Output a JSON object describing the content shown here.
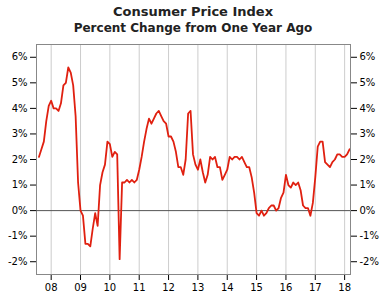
{
  "chart_data": {
    "type": "line",
    "title": "Consumer Price Index",
    "subtitle": "Percent Change from One Year Ago",
    "color": "#e02010",
    "grid": "x",
    "xlim": [
      2007.5,
      2018.2
    ],
    "xticks": [
      {
        "value": 2008,
        "label": "08"
      },
      {
        "value": 2009,
        "label": "09"
      },
      {
        "value": 2010,
        "label": "10"
      },
      {
        "value": 2011,
        "label": "11"
      },
      {
        "value": 2012,
        "label": "12"
      },
      {
        "value": 2013,
        "label": "13"
      },
      {
        "value": 2014,
        "label": "14"
      },
      {
        "value": 2015,
        "label": "15"
      },
      {
        "value": 2016,
        "label": "16"
      },
      {
        "value": 2017,
        "label": "17"
      },
      {
        "value": 2018,
        "label": "18"
      }
    ],
    "ylim": [
      -2.5,
      6.5
    ],
    "yticks": [
      {
        "value": -2,
        "label": "-2%"
      },
      {
        "value": -1,
        "label": "-1%"
      },
      {
        "value": 0,
        "label": "0%"
      },
      {
        "value": 1,
        "label": "1%"
      },
      {
        "value": 2,
        "label": "2%"
      },
      {
        "value": 3,
        "label": "3%"
      },
      {
        "value": 4,
        "label": "4%"
      },
      {
        "value": 5,
        "label": "5%"
      },
      {
        "value": 6,
        "label": "6%"
      }
    ],
    "x": [
      2007.583,
      2007.667,
      2007.75,
      2007.833,
      2007.917,
      2008.0,
      2008.083,
      2008.167,
      2008.25,
      2008.333,
      2008.417,
      2008.5,
      2008.583,
      2008.667,
      2008.75,
      2008.833,
      2008.917,
      2009.0,
      2009.083,
      2009.167,
      2009.25,
      2009.333,
      2009.417,
      2009.5,
      2009.583,
      2009.667,
      2009.75,
      2009.833,
      2009.917,
      2010.0,
      2010.083,
      2010.167,
      2010.25,
      2010.333,
      2010.417,
      2010.5,
      2010.583,
      2010.667,
      2010.75,
      2010.833,
      2010.917,
      2011.0,
      2011.083,
      2011.167,
      2011.25,
      2011.333,
      2011.417,
      2011.5,
      2011.583,
      2011.667,
      2011.75,
      2011.833,
      2011.917,
      2012.0,
      2012.083,
      2012.167,
      2012.25,
      2012.333,
      2012.417,
      2012.5,
      2012.583,
      2012.667,
      2012.75,
      2012.833,
      2012.917,
      2013.0,
      2013.083,
      2013.167,
      2013.25,
      2013.333,
      2013.417,
      2013.5,
      2013.583,
      2013.667,
      2013.75,
      2013.833,
      2013.917,
      2014.0,
      2014.083,
      2014.167,
      2014.25,
      2014.333,
      2014.417,
      2014.5,
      2014.583,
      2014.667,
      2014.75,
      2014.833,
      2014.917,
      2015.0,
      2015.083,
      2015.167,
      2015.25,
      2015.333,
      2015.417,
      2015.5,
      2015.583,
      2015.667,
      2015.75,
      2015.833,
      2015.917,
      2016.0,
      2016.083,
      2016.167,
      2016.25,
      2016.333,
      2016.417,
      2016.5,
      2016.583,
      2016.667,
      2016.75,
      2016.833,
      2016.917,
      2017.0,
      2017.083,
      2017.167,
      2017.25,
      2017.333,
      2017.417,
      2017.5,
      2017.583,
      2017.667,
      2017.75,
      2017.833,
      2017.917,
      2018.0,
      2018.083,
      2018.167
    ],
    "values": [
      2.1,
      2.4,
      2.7,
      3.5,
      4.1,
      4.3,
      4.0,
      4.0,
      3.9,
      4.2,
      4.9,
      5.0,
      5.6,
      5.4,
      4.9,
      3.7,
      1.1,
      0.0,
      -0.2,
      -1.3,
      -1.3,
      -1.4,
      -0.7,
      -0.1,
      -0.6,
      1.0,
      1.5,
      1.8,
      2.7,
      2.6,
      2.1,
      2.3,
      2.2,
      -1.9,
      1.1,
      1.1,
      1.2,
      1.1,
      1.2,
      1.1,
      1.2,
      1.6,
      2.1,
      2.7,
      3.2,
      3.6,
      3.4,
      3.6,
      3.8,
      3.9,
      3.7,
      3.5,
      3.4,
      2.9,
      2.9,
      2.7,
      2.3,
      1.7,
      1.7,
      1.4,
      2.0,
      3.8,
      3.9,
      2.2,
      1.8,
      1.6,
      2.0,
      1.5,
      1.1,
      1.4,
      2.1,
      2.0,
      2.1,
      1.7,
      1.7,
      1.2,
      1.4,
      1.6,
      2.1,
      2.0,
      2.1,
      2.1,
      2.0,
      2.1,
      1.9,
      1.7,
      1.7,
      1.3,
      0.7,
      -0.1,
      -0.2,
      0.0,
      -0.2,
      -0.1,
      0.1,
      0.2,
      0.2,
      0.0,
      0.1,
      0.5,
      0.7,
      1.4,
      1.0,
      0.9,
      1.1,
      1.0,
      1.1,
      0.8,
      0.2,
      0.1,
      0.1,
      -0.2,
      0.3,
      1.3,
      2.5,
      2.7,
      2.7,
      1.9,
      1.8,
      1.7,
      1.9,
      2.0,
      2.2,
      2.2,
      2.1,
      2.1,
      2.2,
      2.4
    ]
  }
}
